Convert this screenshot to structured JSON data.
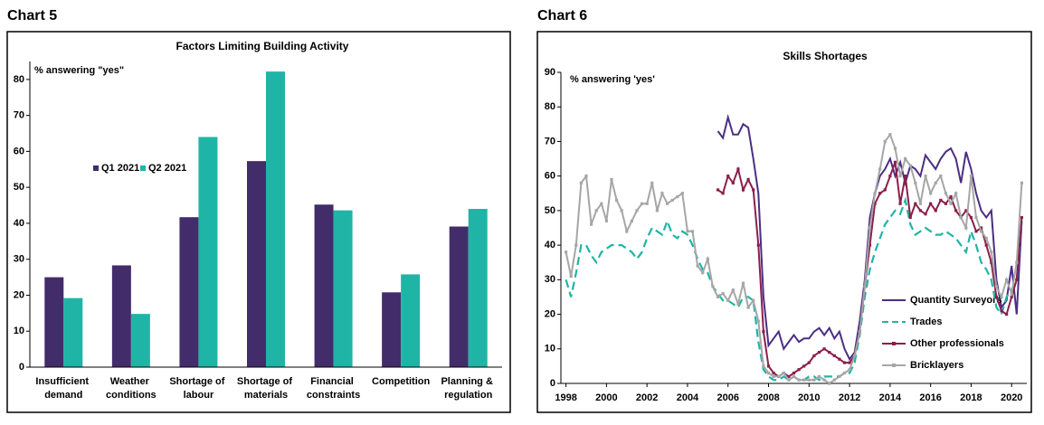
{
  "chart_data": [
    {
      "type": "bar",
      "heading": "Chart 5",
      "title": "Factors Limiting Building Activity",
      "y_label": "% answering \"yes\"",
      "categories": [
        "Insufficient demand",
        "Weather conditions",
        "Shortage of labour",
        "Shortage of materials",
        "Financial constraints",
        "Competition",
        "Planning & regulation"
      ],
      "series": [
        {
          "name": "Q1 2021",
          "color": "#432c6a",
          "values": [
            25,
            28.3,
            41.7,
            57.3,
            45.2,
            20.8,
            39.1
          ]
        },
        {
          "name": "Q2 2021",
          "color": "#1fb5a6",
          "values": [
            19.2,
            14.8,
            64,
            82.2,
            43.6,
            25.8,
            44
          ]
        }
      ],
      "ylim": [
        0,
        85
      ],
      "yticks": [
        0,
        10,
        20,
        30,
        40,
        50,
        60,
        70,
        80
      ],
      "grid": false
    },
    {
      "type": "line",
      "heading": "Chart 6",
      "title": "Skills Shortages",
      "y_label": "% answering 'yes'",
      "x": [
        1998,
        1998.25,
        1998.5,
        1998.75,
        1999,
        1999.25,
        1999.5,
        1999.75,
        2000,
        2000.25,
        2000.5,
        2000.75,
        2001,
        2001.25,
        2001.5,
        2001.75,
        2002,
        2002.25,
        2002.5,
        2002.75,
        2003,
        2003.25,
        2003.5,
        2003.75,
        2004,
        2004.25,
        2004.5,
        2004.75,
        2005,
        2005.25,
        2005.5,
        2005.75,
        2006,
        2006.25,
        2006.5,
        2006.75,
        2007,
        2007.25,
        2007.5,
        2007.75,
        2008,
        2008.25,
        2008.5,
        2008.75,
        2009,
        2009.25,
        2009.5,
        2009.75,
        2010,
        2010.25,
        2010.5,
        2010.75,
        2011,
        2011.25,
        2011.5,
        2011.75,
        2012,
        2012.25,
        2012.5,
        2012.75,
        2013,
        2013.25,
        2013.5,
        2013.75,
        2014,
        2014.25,
        2014.5,
        2014.75,
        2015,
        2015.25,
        2015.5,
        2015.75,
        2016,
        2016.25,
        2016.5,
        2016.75,
        2017,
        2017.25,
        2017.5,
        2017.75,
        2018,
        2018.25,
        2018.5,
        2018.75,
        2019,
        2019.25,
        2019.5,
        2019.75,
        2020,
        2020.25,
        2020.5
      ],
      "series": [
        {
          "name": "Quantity Surveyors",
          "color": "#4b2e83",
          "dashed": false,
          "markers": false,
          "values": [
            null,
            null,
            null,
            null,
            null,
            null,
            null,
            null,
            null,
            null,
            null,
            null,
            null,
            null,
            null,
            null,
            null,
            null,
            null,
            null,
            null,
            null,
            null,
            null,
            null,
            null,
            null,
            null,
            null,
            null,
            73,
            71,
            77,
            72,
            72,
            75,
            74,
            65,
            55,
            25,
            11,
            13,
            15,
            10,
            12,
            14,
            12,
            13,
            13,
            15,
            16,
            14,
            16,
            13,
            15,
            10,
            7,
            9,
            18,
            30,
            48,
            55,
            60,
            62,
            65,
            60,
            64,
            58,
            63,
            62,
            60,
            66,
            64,
            62,
            65,
            67,
            68,
            65,
            58,
            67,
            62,
            55,
            50,
            48,
            50,
            30,
            22,
            24,
            34,
            20,
            47
          ]
        },
        {
          "name": "Trades",
          "color": "#1fb5a6",
          "dashed": true,
          "markers": false,
          "values": [
            30,
            25,
            32,
            40,
            40,
            37,
            35,
            38,
            39,
            40,
            40,
            40,
            39,
            38,
            36,
            38,
            42,
            45,
            44,
            43,
            47,
            43,
            42,
            44,
            43,
            40,
            36,
            33,
            32,
            28,
            26,
            24,
            24,
            23,
            22,
            25,
            25,
            24,
            12,
            4,
            2,
            1,
            1,
            2,
            1,
            2,
            1,
            1,
            2,
            2,
            1,
            2,
            2,
            2,
            2,
            3,
            3,
            6,
            14,
            25,
            33,
            38,
            42,
            46,
            48,
            50,
            49,
            53,
            46,
            43,
            44,
            45,
            44,
            43,
            43,
            44,
            43,
            42,
            40,
            38,
            44,
            40,
            35,
            33,
            30,
            22,
            20,
            25,
            27,
            30,
            47
          ]
        },
        {
          "name": "Other professionals",
          "color": "#8b1f4b",
          "dashed": false,
          "markers": true,
          "values": [
            null,
            null,
            null,
            null,
            null,
            null,
            null,
            null,
            null,
            null,
            null,
            null,
            null,
            null,
            null,
            null,
            null,
            null,
            null,
            null,
            null,
            null,
            null,
            null,
            null,
            null,
            null,
            null,
            null,
            null,
            56,
            55,
            60,
            58,
            62,
            56,
            59,
            56,
            40,
            15,
            5,
            3,
            2,
            3,
            2,
            3,
            4,
            5,
            6,
            8,
            9,
            10,
            9,
            8,
            7,
            6,
            6,
            8,
            15,
            28,
            40,
            52,
            55,
            56,
            60,
            64,
            52,
            60,
            48,
            52,
            50,
            49,
            52,
            50,
            53,
            52,
            54,
            50,
            48,
            50,
            48,
            44,
            45,
            40,
            35,
            25,
            21,
            20,
            25,
            30,
            48
          ]
        },
        {
          "name": "Bricklayers",
          "color": "#a6a6a6",
          "dashed": false,
          "markers": true,
          "values": [
            38,
            31,
            40,
            58,
            60,
            46,
            50,
            52,
            47,
            59,
            53,
            50,
            44,
            47,
            50,
            52,
            52,
            58,
            50,
            55,
            52,
            53,
            54,
            55,
            44,
            44,
            34,
            32,
            36,
            28,
            25,
            26,
            24,
            27,
            23,
            29,
            22,
            24,
            18,
            5,
            3,
            2,
            2,
            3,
            1,
            2,
            1,
            1,
            1,
            1,
            2,
            1,
            0,
            1,
            2,
            3,
            4,
            8,
            15,
            28,
            45,
            55,
            62,
            70,
            72,
            68,
            60,
            65,
            63,
            58,
            52,
            60,
            55,
            58,
            60,
            55,
            52,
            55,
            48,
            45,
            60,
            48,
            44,
            42,
            38,
            28,
            25,
            30,
            26,
            35,
            58
          ]
        }
      ],
      "xlim": [
        1997.75,
        2020.75
      ],
      "xticks": [
        1998,
        2000,
        2002,
        2004,
        2006,
        2008,
        2010,
        2012,
        2014,
        2016,
        2018,
        2020
      ],
      "ylim": [
        0,
        90
      ],
      "yticks": [
        0,
        10,
        20,
        30,
        40,
        50,
        60,
        70,
        80,
        90
      ],
      "legend": "lower right",
      "grid": false
    }
  ]
}
